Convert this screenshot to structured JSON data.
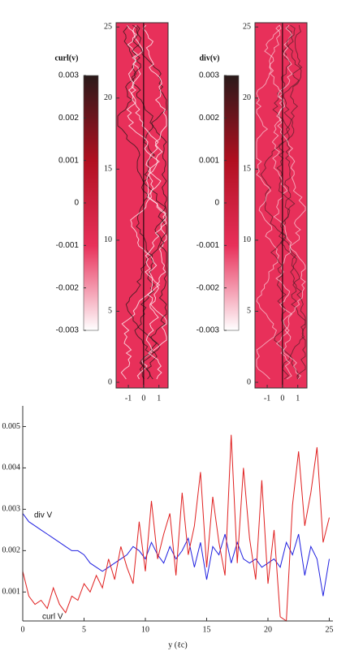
{
  "chart_data": [
    {
      "type": "field",
      "xlim": [
        -1.8,
        1.6
      ],
      "xticks": [
        -1,
        0,
        1
      ],
      "ylim": [
        -0.4,
        25.3
      ],
      "yticks": [
        0,
        5,
        10,
        15,
        20,
        25
      ],
      "colorbar": {
        "title": "curl(v)",
        "lim": [
          -0.003,
          0.003
        ],
        "ticks": [
          -0.003,
          -0.002,
          -0.001,
          0,
          0.001,
          0.002,
          0.003
        ],
        "colors": [
          "#ffffff",
          "#e8305a",
          "#b01020",
          "#2a1a1a"
        ]
      }
    },
    {
      "type": "field",
      "xlim": [
        -1.8,
        1.6
      ],
      "xticks": [
        -1,
        0,
        1
      ],
      "ylim": [
        -0.4,
        25.3
      ],
      "yticks": [
        0,
        5,
        10,
        15,
        20,
        25
      ],
      "colorbar": {
        "title": "div(v)",
        "lim": [
          -0.003,
          0.003
        ],
        "ticks": [
          -0.003,
          -0.002,
          -0.001,
          0,
          0.001,
          0.002,
          0.003
        ],
        "colors": [
          "#ffffff",
          "#e8305a",
          "#b01020",
          "#2a1a1a"
        ]
      }
    },
    {
      "type": "line",
      "xlabel": "y (ℓc)",
      "xlim": [
        0,
        25.3
      ],
      "xticks": [
        0,
        5,
        10,
        15,
        20,
        25
      ],
      "ylim": [
        0.0003,
        0.0055
      ],
      "yticks": [
        0.001,
        0.002,
        0.003,
        0.004,
        0.005
      ],
      "annotations": [
        "div V",
        "curl V"
      ],
      "x": [
        0,
        0.5,
        1,
        1.5,
        2,
        2.5,
        3,
        3.5,
        4,
        4.5,
        5,
        5.5,
        6,
        6.5,
        7,
        7.5,
        8,
        8.5,
        9,
        9.5,
        10,
        10.5,
        11,
        11.5,
        12,
        12.5,
        13,
        13.5,
        14,
        14.5,
        15,
        15.5,
        16,
        16.5,
        17,
        17.5,
        18,
        18.5,
        19,
        19.5,
        20,
        20.5,
        21,
        21.5,
        22,
        22.5,
        23,
        23.5,
        24,
        24.5,
        25
      ],
      "series": [
        {
          "name": "div V",
          "color": "#2020e0",
          "values": [
            0.0029,
            0.0027,
            0.0026,
            0.0025,
            0.0024,
            0.0023,
            0.0022,
            0.0021,
            0.002,
            0.002,
            0.0019,
            0.0017,
            0.0016,
            0.0015,
            0.0016,
            0.0017,
            0.0018,
            0.0019,
            0.0021,
            0.002,
            0.0018,
            0.0022,
            0.0019,
            0.0017,
            0.0021,
            0.0018,
            0.002,
            0.0023,
            0.0016,
            0.0022,
            0.0013,
            0.0021,
            0.0019,
            0.0024,
            0.0017,
            0.0022,
            0.0018,
            0.0017,
            0.0018,
            0.0016,
            0.0017,
            0.0018,
            0.0016,
            0.0022,
            0.0019,
            0.0024,
            0.0014,
            0.0021,
            0.0018,
            0.0009,
            0.0018
          ]
        },
        {
          "name": "curl V",
          "color": "#e02020",
          "values": [
            0.0015,
            0.0009,
            0.0007,
            0.0008,
            0.0006,
            0.0011,
            0.0007,
            0.0005,
            0.0009,
            0.0008,
            0.0012,
            0.001,
            0.0014,
            0.0011,
            0.0018,
            0.0013,
            0.0021,
            0.0016,
            0.0012,
            0.0027,
            0.0015,
            0.0032,
            0.0018,
            0.0024,
            0.0029,
            0.0014,
            0.0034,
            0.0019,
            0.0026,
            0.0039,
            0.0016,
            0.0033,
            0.0022,
            0.0014,
            0.0048,
            0.0017,
            0.004,
            0.0023,
            0.0013,
            0.0037,
            0.0012,
            0.0025,
            0.0004,
            0.0003,
            0.0031,
            0.0044,
            0.0026,
            0.0034,
            0.0045,
            0.0022,
            0.0028
          ]
        }
      ]
    }
  ]
}
